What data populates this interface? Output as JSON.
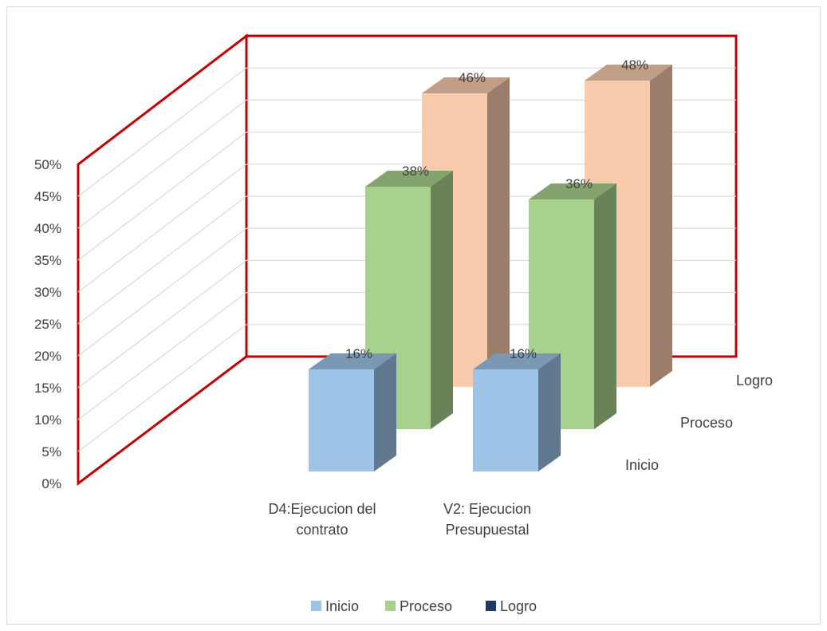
{
  "chart_data": {
    "type": "bar",
    "style": "3d-column",
    "categories": [
      "D4:Ejecucion del contrato",
      "V2: Ejecucion Presupuestal"
    ],
    "category_lines": [
      [
        "D4:Ejecucion del",
        "contrato"
      ],
      [
        "V2: Ejecucion",
        "Presupuestal"
      ]
    ],
    "series": [
      {
        "name": "Inicio",
        "values": [
          0.16,
          0.16
        ],
        "labels": [
          "16%",
          "16%"
        ],
        "color": "#9dc3e6"
      },
      {
        "name": "Proceso",
        "values": [
          0.38,
          0.36
        ],
        "labels": [
          "38%",
          "36%"
        ],
        "color": "#a9d18e"
      },
      {
        "name": "Logro",
        "values": [
          0.46,
          0.48
        ],
        "labels": [
          "46%",
          "48%"
        ],
        "color": "#f8cbad"
      }
    ],
    "legend_colors": {
      "Inicio": "#9dc3e6",
      "Proceso": "#a9d18e",
      "Logro": "#203864"
    },
    "y_ticks": [
      "0%",
      "5%",
      "10%",
      "15%",
      "20%",
      "25%",
      "30%",
      "35%",
      "40%",
      "45%",
      "50%"
    ],
    "ylim": [
      0,
      0.5
    ],
    "title": "",
    "xlabel": "",
    "ylabel": "",
    "grid": true,
    "wall_color": "#c00000",
    "legend_position": "bottom"
  }
}
